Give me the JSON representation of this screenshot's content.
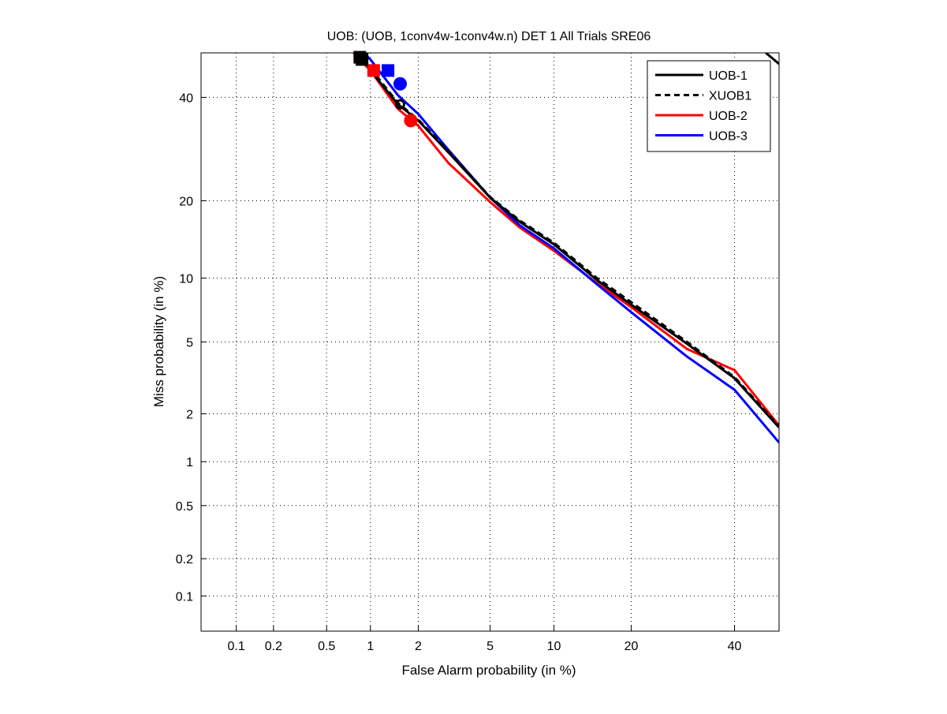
{
  "chart_data": {
    "type": "line",
    "scale": "probit",
    "title": "UOB: (UOB, 1conv4w-1conv4w.n) DET 1 All Trials SRE06",
    "xlabel": "False Alarm probability (in %)",
    "ylabel": "Miss probability (in %)",
    "xlim": [
      0.05,
      50
    ],
    "ylim": [
      0.05,
      50
    ],
    "xticks": [
      0.1,
      0.2,
      0.5,
      1,
      2,
      5,
      10,
      20,
      40
    ],
    "xtick_labels": [
      "0.1",
      "0.2",
      "0.5",
      "1",
      "2",
      "5",
      "10",
      "20",
      "40"
    ],
    "yticks": [
      0.1,
      0.2,
      0.5,
      1,
      2,
      5,
      10,
      20,
      40
    ],
    "ytick_labels": [
      "0.1",
      "0.2",
      "0.5",
      "1",
      "2",
      "5",
      "10",
      "20",
      "40"
    ],
    "grid": true,
    "legend_position": "top-right",
    "series": [
      {
        "name": "UOB-1",
        "color": "#000000",
        "dash": "solid",
        "x": [
          0.85,
          1.0,
          1.5,
          2.0,
          3.0,
          5.0,
          7.0,
          10.0,
          15.0,
          20.0,
          30.0,
          40.0,
          50.0
        ],
        "y": [
          50.0,
          46.0,
          38.5,
          35.0,
          28.5,
          20.5,
          16.8,
          13.8,
          9.8,
          7.6,
          4.9,
          3.2,
          1.65
        ],
        "extra_segment": {
          "x": [
            47.0,
            50.0
          ],
          "y": [
            50.0,
            47.5
          ]
        },
        "act_dcf": [
          0.88,
          48.5
        ],
        "min_dcf": [
          1.55,
          38.5
        ]
      },
      {
        "name": "XUOB1",
        "color": "#000000",
        "dash": "dashed",
        "x": [
          0.8,
          1.0,
          1.5,
          2.0,
          3.0,
          5.0,
          7.0,
          10.0,
          15.0,
          20.0,
          30.0,
          40.0,
          50.0
        ],
        "y": [
          50.0,
          46.5,
          38.8,
          35.2,
          28.8,
          20.6,
          17.0,
          14.0,
          10.0,
          7.8,
          5.0,
          3.25,
          1.68
        ],
        "act_dcf": [
          0.85,
          49.0
        ]
      },
      {
        "name": "UOB-2",
        "color": "#ff0000",
        "dash": "solid",
        "x": [
          0.77,
          1.0,
          1.5,
          2.0,
          3.0,
          5.0,
          7.0,
          10.0,
          15.0,
          20.0,
          30.0,
          40.0,
          50.0
        ],
        "y": [
          50.0,
          46.0,
          37.5,
          33.9,
          26.5,
          19.8,
          16.0,
          13.0,
          9.5,
          7.4,
          4.6,
          3.55,
          1.7
        ],
        "act_dcf": [
          1.05,
          46.0
        ],
        "min_dcf": [
          1.8,
          35.0
        ]
      },
      {
        "name": "UOB-3",
        "color": "#0000ff",
        "dash": "solid",
        "x": [
          0.9,
          1.0,
          1.5,
          2.0,
          3.0,
          5.0,
          7.0,
          10.0,
          15.0,
          20.0,
          30.0,
          40.0,
          50.0
        ],
        "y": [
          50.0,
          48.5,
          40.5,
          36.4,
          29.0,
          20.5,
          16.3,
          13.3,
          9.4,
          7.0,
          4.2,
          2.76,
          1.33
        ],
        "act_dcf": [
          1.3,
          46.0
        ],
        "min_dcf": [
          1.55,
          43.0
        ]
      }
    ]
  }
}
